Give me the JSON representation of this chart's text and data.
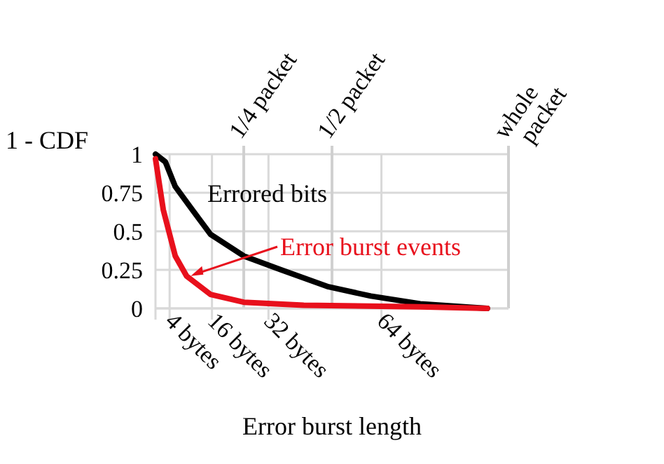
{
  "chart_data": {
    "type": "line",
    "xlabel": "Error burst length",
    "ylabel": "1 - CDF",
    "xlim": [
      0,
      100
    ],
    "ylim": [
      0,
      1
    ],
    "xticks": [
      {
        "value": 4,
        "label": "4 bytes"
      },
      {
        "value": 16,
        "label": "16 bytes"
      },
      {
        "value": 32,
        "label": "32 bytes"
      },
      {
        "value": 64,
        "label": "64 bytes"
      }
    ],
    "ref_lines": [
      {
        "axis": "x",
        "value": 25,
        "label": "1/4 packet"
      },
      {
        "axis": "x",
        "value": 50,
        "label": "1/2 packet"
      },
      {
        "axis": "x",
        "value": 100,
        "label": "whole packet"
      }
    ],
    "yticks": [
      0,
      0.25,
      0.5,
      0.75,
      1
    ],
    "grid": true,
    "marker": "none",
    "line_style": "solid",
    "series": [
      {
        "name": "Errored bits",
        "color": "#000000",
        "x": [
          0,
          2.8,
          5.6,
          10.4,
          15.6,
          25,
          35.6,
          49,
          61,
          75,
          94
        ],
        "values": [
          1,
          0.95,
          0.79,
          0.64,
          0.48,
          0.34,
          0.25,
          0.14,
          0.08,
          0.03,
          0
        ]
      },
      {
        "name": "Error burst events",
        "color": "#e8101c",
        "x": [
          0,
          2.2,
          5.6,
          8.8,
          15.6,
          25,
          42,
          75,
          94
        ],
        "values": [
          0.97,
          0.64,
          0.34,
          0.21,
          0.09,
          0.04,
          0.02,
          0.01,
          0
        ]
      }
    ]
  }
}
